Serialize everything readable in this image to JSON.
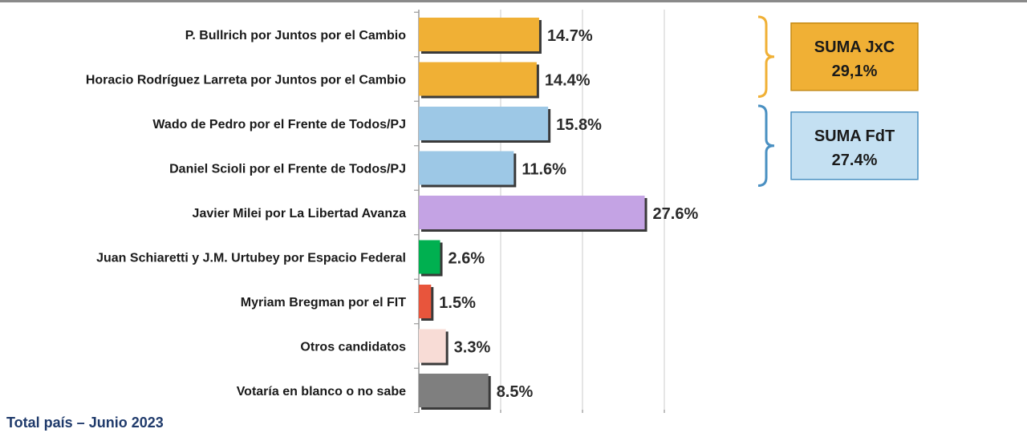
{
  "chart_data": {
    "type": "bar",
    "orientation": "horizontal",
    "categories": [
      "P. Bullrich por Juntos por el Cambio",
      "Horacio Rodríguez Larreta por Juntos por el Cambio",
      "Wado de Pedro por el Frente de Todos/PJ",
      "Daniel Scioli por el Frente de Todos/PJ",
      "Javier Milei por La Libertad Avanza",
      "Juan Schiaretti y J.M. Urtubey por Espacio Federal",
      "Myriam Bregman por el FIT",
      "Otros candidatos",
      "Votaría en blanco o no sabe"
    ],
    "values": [
      14.7,
      14.4,
      15.8,
      11.6,
      27.6,
      2.6,
      1.5,
      3.3,
      8.5
    ],
    "value_labels": [
      "14.7%",
      "14.4%",
      "15.8%",
      "11.6%",
      "27.6%",
      "2.6%",
      "1.5%",
      "3.3%",
      "8.5%"
    ],
    "colors": [
      "#f0b035",
      "#f0b035",
      "#9dc8e6",
      "#9dc8e6",
      "#c4a3e4",
      "#00b050",
      "#e8553c",
      "#f8dcd6",
      "#7f7f7f"
    ],
    "xlim": [
      0,
      35
    ],
    "grid": "vertical",
    "groups": [
      {
        "label_line1": "SUMA JxC",
        "label_line2": "29,1%",
        "rows": [
          0,
          1
        ],
        "fill": "#f0b035",
        "border": "#c58a14",
        "bracket": "#f0b035"
      },
      {
        "label_line1": "SUMA FdT",
        "label_line2": "27.4%",
        "rows": [
          2,
          3
        ],
        "fill": "#c4e0f2",
        "border": "#4a90c2",
        "bracket": "#4a90c2"
      }
    ]
  },
  "footer": "Total país – Junio 2023"
}
